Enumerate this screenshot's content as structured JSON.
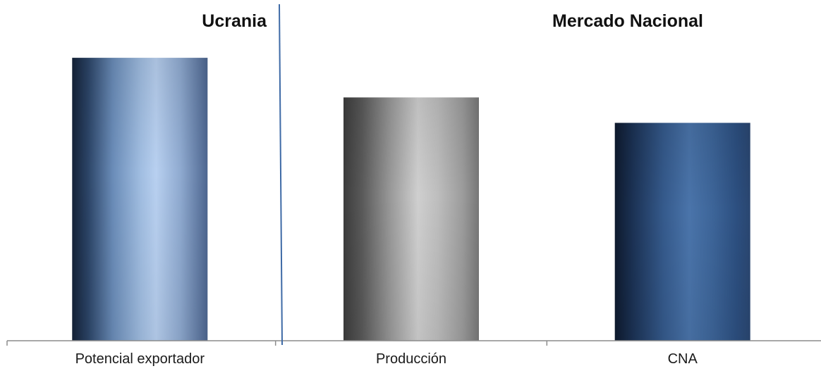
{
  "chart_data": {
    "type": "bar",
    "title": "",
    "xlabel": "",
    "ylabel": "",
    "categories": [
      "Potencial exportador",
      "Producción",
      "CNA"
    ],
    "values": [
      100,
      86,
      77
    ],
    "ylim": [
      0,
      105
    ],
    "grid": false,
    "legend": "none",
    "group_labels": [
      {
        "label": "Ucrania",
        "categories": [
          "Potencial exportador"
        ]
      },
      {
        "label": "Mercado Nacional",
        "categories": [
          "Producción",
          "CNA"
        ]
      }
    ],
    "bar_colors": [
      "#5a7fa8",
      "#8a8a8a",
      "#2f5585"
    ],
    "axis_color": "#8c8c8c",
    "separator_color": "#3e6aa6"
  }
}
